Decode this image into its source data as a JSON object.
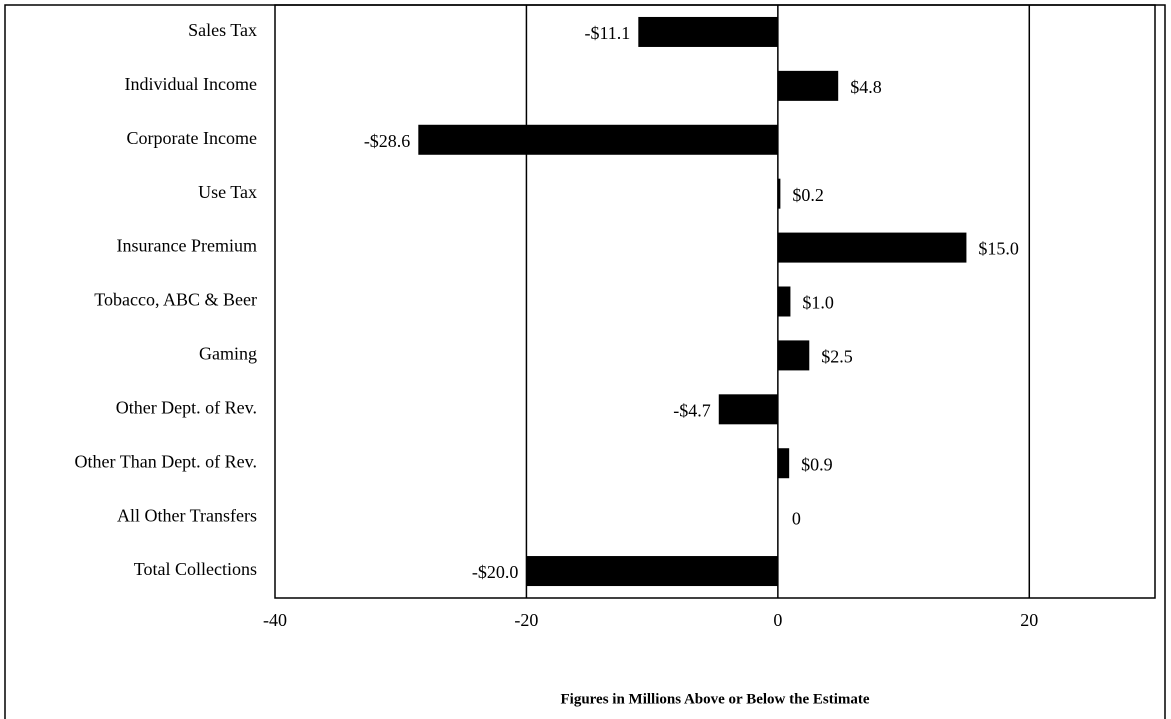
{
  "chart_data": {
    "type": "barh",
    "x_label": "Figures in Millions Above or Below the Estimate",
    "categories": [
      "Sales Tax",
      "Individual Income",
      "Corporate Income",
      "Use Tax",
      "Insurance Premium",
      "Tobacco, ABC & Beer",
      "Gaming",
      "Other Dept. of Rev.",
      "Other Than Dept. of Rev.",
      "All Other Transfers",
      "Total Collections"
    ],
    "values": [
      -11.1,
      4.8,
      -28.6,
      0.2,
      15.0,
      1.0,
      2.5,
      -4.7,
      0.9,
      0,
      -20.0
    ],
    "value_labels": [
      "-$11.1",
      "$4.8",
      "-$28.6",
      "$0.2",
      "$15.0",
      "$1.0",
      "$2.5",
      "-$4.7",
      "$0.9",
      "0",
      "-$20.0"
    ],
    "color": "#000000",
    "xlim": [
      -40,
      30
    ],
    "xticks": [
      -40,
      -20,
      0,
      20
    ],
    "grid": true
  }
}
